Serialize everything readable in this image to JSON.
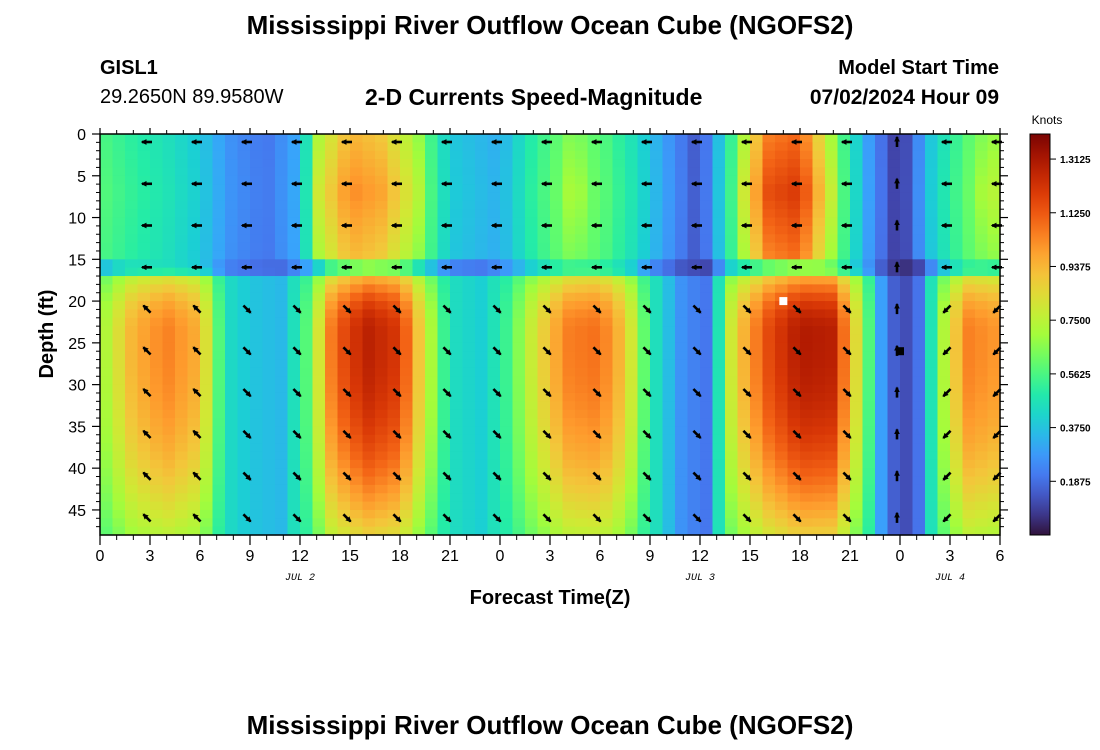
{
  "header": {
    "title": "Mississippi River Outflow Ocean Cube (NGOFS2)",
    "station": "GISL1",
    "coords": "29.2650N  89.9580W",
    "subtitle": "2-D Currents Speed-Magnitude",
    "model_start_label": "Model Start Time",
    "model_start_value": "07/02/2024 Hour 09"
  },
  "footer": {
    "title": "Mississippi River Outflow Ocean Cube (NGOFS2)"
  },
  "colors": {
    "low": "#2a1e5c",
    "high": "#7a0403",
    "vector": "#000000",
    "marker": "#ffffff"
  },
  "chart_data": {
    "type": "heatmap",
    "title": "2-D Currents Speed-Magnitude",
    "xlabel": "Forecast Time(Z)",
    "ylabel": "Depth (ft)",
    "x_range_hours": [
      0,
      54
    ],
    "y_range_ft": [
      0,
      48
    ],
    "x_tick_hours": [
      0,
      3,
      6,
      9,
      12,
      15,
      18,
      21,
      24,
      27,
      30,
      33,
      36,
      39,
      42,
      45,
      48,
      51,
      54
    ],
    "x_tick_labels": [
      "0",
      "3",
      "6",
      "9",
      "12",
      "15",
      "18",
      "21",
      "0",
      "3",
      "6",
      "9",
      "12",
      "15",
      "18",
      "21",
      "0",
      "3",
      "6"
    ],
    "y_ticks": [
      0,
      5,
      10,
      15,
      20,
      25,
      30,
      35,
      40,
      45
    ],
    "y_tick_labels": [
      "0",
      "5",
      "10",
      "15",
      "20",
      "25",
      "30",
      "35",
      "40",
      "45"
    ],
    "date_labels": [
      {
        "hour": 12,
        "text": "JUL 2"
      },
      {
        "hour": 36,
        "text": "JUL 3"
      },
      {
        "hour": 51,
        "text": "JUL 4"
      }
    ],
    "colorbar": {
      "unit": "Knots",
      "min": 0.0,
      "max": 1.4,
      "ticks": [
        0.1875,
        0.375,
        0.5625,
        0.75,
        0.9375,
        1.125,
        1.3125
      ],
      "tick_labels": [
        "0.1875",
        "0.3750",
        "0.5625",
        "0.7500",
        "0.9375",
        "1.1250",
        "1.3125"
      ]
    },
    "vector_times": [
      3,
      6,
      9,
      12,
      15,
      18,
      21,
      24,
      27,
      30,
      33,
      36,
      39,
      42,
      45,
      48,
      51,
      54
    ],
    "vector_depths": [
      0,
      5,
      10,
      15,
      20,
      25,
      30,
      35,
      40,
      45
    ],
    "surface_layer_bottom_ft": 16.5,
    "surface_speed_profile": [
      [
        0,
        0.56
      ],
      [
        2,
        0.5
      ],
      [
        4,
        0.45
      ],
      [
        6,
        0.38
      ],
      [
        8,
        0.25
      ],
      [
        10,
        0.2
      ],
      [
        12,
        0.32
      ],
      [
        13,
        0.68
      ],
      [
        15,
        0.9
      ],
      [
        17,
        0.85
      ],
      [
        19,
        0.66
      ],
      [
        21,
        0.38
      ],
      [
        24,
        0.32
      ],
      [
        26,
        0.5
      ],
      [
        28,
        0.62
      ],
      [
        30,
        0.58
      ],
      [
        32,
        0.45
      ],
      [
        34,
        0.28
      ],
      [
        36,
        0.12
      ],
      [
        38,
        0.55
      ],
      [
        40,
        1.0
      ],
      [
        42,
        1.05
      ],
      [
        44,
        0.65
      ],
      [
        46,
        0.3
      ],
      [
        48,
        0.05
      ],
      [
        50,
        0.4
      ],
      [
        52,
        0.58
      ],
      [
        54,
        0.66
      ]
    ],
    "lower_speed_profile": [
      [
        0,
        0.68
      ],
      [
        2,
        0.95
      ],
      [
        4,
        1.05
      ],
      [
        6,
        0.95
      ],
      [
        7.5,
        0.45
      ],
      [
        9,
        0.38
      ],
      [
        11,
        0.35
      ],
      [
        12.5,
        0.6
      ],
      [
        14,
        1.1
      ],
      [
        16,
        1.28
      ],
      [
        18,
        1.2
      ],
      [
        19.5,
        0.8
      ],
      [
        21,
        0.45
      ],
      [
        23,
        0.4
      ],
      [
        24.5,
        0.55
      ],
      [
        26,
        0.8
      ],
      [
        28,
        1.05
      ],
      [
        30,
        1.08
      ],
      [
        31.5,
        0.9
      ],
      [
        33,
        0.5
      ],
      [
        35,
        0.25
      ],
      [
        36.5,
        0.2
      ],
      [
        38,
        0.85
      ],
      [
        40,
        1.15
      ],
      [
        42,
        1.3
      ],
      [
        44,
        1.28
      ],
      [
        45.5,
        0.8
      ],
      [
        47,
        0.25
      ],
      [
        48,
        0.1
      ],
      [
        49,
        0.15
      ],
      [
        50.5,
        0.7
      ],
      [
        52,
        1.05
      ],
      [
        54,
        1.0
      ]
    ],
    "bulge": {
      "lower_peak_ft": 24,
      "lower_edge_reduction": 0.5,
      "surface_mid_boost": 0.15
    },
    "surface_vectors": [
      {
        "from_hour": 0,
        "to_hour": 24,
        "direction": "W"
      },
      {
        "from_hour": 24,
        "to_hour": 37,
        "direction": "W"
      },
      {
        "from_hour": 37,
        "to_hour": 48,
        "direction": "W"
      },
      {
        "from_hour": 48,
        "to_hour": 48.5,
        "direction": "N"
      },
      {
        "from_hour": 48.5,
        "to_hour": 54,
        "direction": "W"
      }
    ],
    "lower_vectors": [
      {
        "from_hour": 0,
        "to_hour": 8,
        "direction": "NW"
      },
      {
        "from_hour": 8,
        "to_hour": 24,
        "direction": "SE"
      },
      {
        "from_hour": 24,
        "to_hour": 48,
        "direction": "SE"
      },
      {
        "from_hour": 48,
        "to_hour": 48.5,
        "direction": "N"
      },
      {
        "from_hour": 48.5,
        "to_hour": 54,
        "direction": "SW"
      }
    ],
    "marker_white": {
      "hour": 41,
      "depth_ft": 20
    },
    "marker_black": {
      "hour": 48,
      "depth_ft": 26
    }
  }
}
